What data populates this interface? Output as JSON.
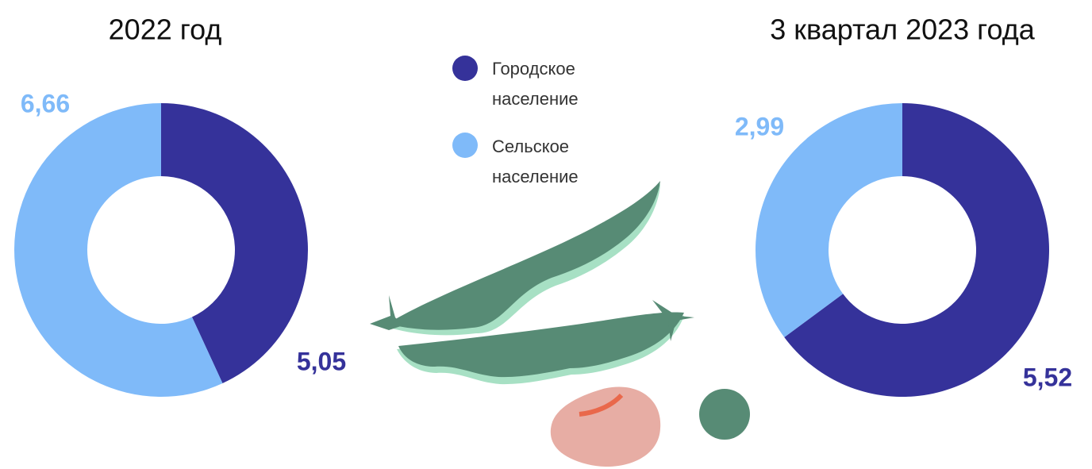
{
  "chart_data": [
    {
      "type": "pie",
      "title": "2022 год",
      "categories": [
        "Городское население",
        "Сельское население"
      ],
      "values": [
        5.05,
        6.66
      ],
      "value_labels": [
        "5,05",
        "6,66"
      ],
      "colors": [
        "#35329a",
        "#7fbaf9"
      ],
      "donut": true
    },
    {
      "type": "pie",
      "title": "3 квартал 2023 года",
      "categories": [
        "Городское население",
        "Сельское население"
      ],
      "values": [
        5.52,
        2.99
      ],
      "value_labels": [
        "5,52",
        "2,99"
      ],
      "colors": [
        "#35329a",
        "#7fbaf9"
      ],
      "donut": true
    }
  ]
}
